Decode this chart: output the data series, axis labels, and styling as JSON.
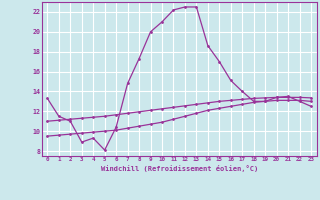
{
  "xlabel": "Windchill (Refroidissement éolien,°C)",
  "background_color": "#cce8ec",
  "grid_color": "#b0d8dc",
  "line_color": "#993399",
  "xlim": [
    -0.5,
    23.5
  ],
  "ylim": [
    7.5,
    23.0
  ],
  "yticks": [
    8,
    10,
    12,
    14,
    16,
    18,
    20,
    22
  ],
  "xticks": [
    0,
    1,
    2,
    3,
    4,
    5,
    6,
    7,
    8,
    9,
    10,
    11,
    12,
    13,
    14,
    15,
    16,
    17,
    18,
    19,
    20,
    21,
    22,
    23
  ],
  "series1_x": [
    0,
    1,
    2,
    3,
    4,
    5,
    6,
    7,
    8,
    9,
    10,
    11,
    12,
    13,
    14,
    15,
    16,
    17,
    18,
    19,
    20,
    21,
    22,
    23
  ],
  "series1_y": [
    13.3,
    11.5,
    11.0,
    8.9,
    9.3,
    8.1,
    10.4,
    14.8,
    17.3,
    20.0,
    21.0,
    22.2,
    22.5,
    22.5,
    18.6,
    17.0,
    15.1,
    14.0,
    13.0,
    13.0,
    13.4,
    13.5,
    13.0,
    12.5
  ],
  "series2_x": [
    0,
    1,
    2,
    3,
    4,
    5,
    6,
    7,
    8,
    9,
    10,
    11,
    12,
    13,
    14,
    15,
    16,
    17,
    18,
    19,
    20,
    21,
    22,
    23
  ],
  "series2_y": [
    9.5,
    9.6,
    9.7,
    9.8,
    9.9,
    10.0,
    10.1,
    10.3,
    10.5,
    10.7,
    10.9,
    11.2,
    11.5,
    11.8,
    12.1,
    12.3,
    12.5,
    12.7,
    12.9,
    13.0,
    13.1,
    13.1,
    13.1,
    13.0
  ],
  "series3_x": [
    0,
    1,
    2,
    3,
    4,
    5,
    6,
    7,
    8,
    9,
    10,
    11,
    12,
    13,
    14,
    15,
    16,
    17,
    18,
    19,
    20,
    21,
    22,
    23
  ],
  "series3_y": [
    11.0,
    11.1,
    11.2,
    11.3,
    11.4,
    11.5,
    11.65,
    11.8,
    11.95,
    12.1,
    12.25,
    12.4,
    12.55,
    12.7,
    12.85,
    13.0,
    13.1,
    13.2,
    13.3,
    13.35,
    13.4,
    13.4,
    13.4,
    13.35
  ]
}
